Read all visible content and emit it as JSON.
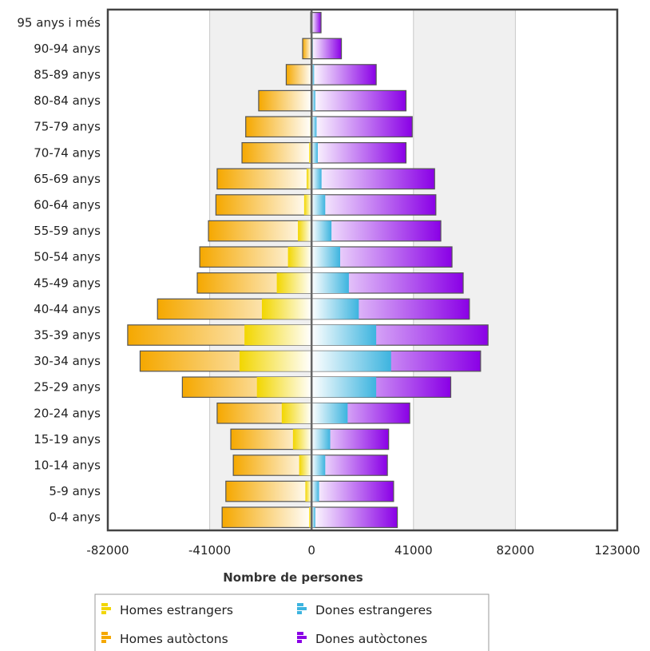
{
  "chart_data": {
    "type": "bar",
    "orientation": "horizontal",
    "stacked": true,
    "categories": [
      "0-4 anys",
      "5-9 anys",
      "10-14 anys",
      "15-19 anys",
      "20-24 anys",
      "25-29 anys",
      "30-34 anys",
      "35-39 anys",
      "40-44 anys",
      "45-49 anys",
      "50-54 anys",
      "55-59 anys",
      "60-64 anys",
      "65-69 anys",
      "70-74 anys",
      "75-79 anys",
      "80-84 anys",
      "85-89 anys",
      "90-94 anys",
      "95 anys i més"
    ],
    "series": [
      {
        "name": "Homes estrangers",
        "color": "#f2d600",
        "values": [
          -1000,
          -2500,
          -5000,
          -7500,
          -12000,
          -22000,
          -29000,
          -27000,
          -20000,
          -14000,
          -9500,
          -5500,
          -3000,
          -2000,
          -1000,
          -500,
          -300,
          -200,
          -100,
          -50
        ]
      },
      {
        "name": "Homes autòctons",
        "color": "#f5a800",
        "values": [
          -35000,
          -32000,
          -26500,
          -25000,
          -26000,
          -30000,
          -40000,
          -47000,
          -42000,
          -32000,
          -35500,
          -36000,
          -35500,
          -36000,
          -27000,
          -26000,
          -21000,
          -10000,
          -3500,
          -300
        ]
      },
      {
        "name": "Dones estrangeres",
        "color": "#3db4df",
        "values": [
          1500,
          3000,
          5500,
          7500,
          14500,
          26000,
          32000,
          26000,
          19000,
          15000,
          11500,
          8000,
          5500,
          4000,
          2500,
          2000,
          1500,
          1000,
          500,
          300
        ]
      },
      {
        "name": "Dones autòctones",
        "color": "#8a00e6",
        "values": [
          33000,
          30000,
          25000,
          23500,
          25000,
          30000,
          36000,
          45000,
          44500,
          46000,
          45000,
          44000,
          44500,
          45500,
          35500,
          38500,
          36500,
          25000,
          11500,
          3500
        ]
      }
    ],
    "xlabel": "Nombre de persones",
    "x_ticks": [
      "-82000",
      "-41000",
      "0",
      "41000",
      "82000",
      "123000"
    ],
    "xlim": [
      -82000,
      123000
    ],
    "grid": "vertical",
    "legend_position": "bottom"
  }
}
